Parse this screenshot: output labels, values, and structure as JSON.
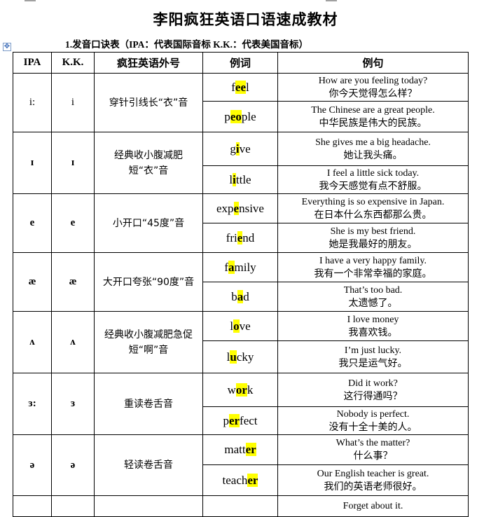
{
  "title": "李阳疯狂英语口语速成教材",
  "subtitle": "1.发音口诀表（IPA：代表国际音标 K.K.：代表美国音标）",
  "headers": [
    "IPA",
    "K.K.",
    "疯狂英语外号",
    "例词",
    "例句"
  ],
  "highlight_color": "#ffff00",
  "rows": [
    {
      "ipa": "i:",
      "kk": "i",
      "bold": false,
      "desc": "穿针引线长“衣”音",
      "h": [
        40,
        44
      ],
      "examples": [
        {
          "word": [
            "f",
            "ee",
            "l"
          ],
          "en": "How are you feeling today?",
          "zh": "你今天觉得怎么样？"
        },
        {
          "word": [
            "p",
            "eo",
            "ple"
          ],
          "en": "The Chinese are a great people.",
          "zh": "中华民族是伟大的民族。"
        }
      ]
    },
    {
      "ipa": "ɪ",
      "kk": "ɪ",
      "bold": true,
      "desc": "经典收小腹减肥短“衣”音",
      "h": [
        48,
        40
      ],
      "examples": [
        {
          "word": [
            "g",
            "i",
            "ve"
          ],
          "en": "She gives me a big headache.",
          "zh": "她让我头痛。"
        },
        {
          "word": [
            "l",
            "i",
            "ttle"
          ],
          "en": "I feel a little sick today.",
          "zh": "我今天感觉有点不舒服。"
        }
      ]
    },
    {
      "ipa": "e",
      "kk": "e",
      "bold": true,
      "desc": "小开口“45度”音",
      "h": [
        42,
        42
      ],
      "examples": [
        {
          "word": [
            "exp",
            "e",
            "nsive"
          ],
          "en": "Everything is so expensive in Japan.",
          "zh": "在日本什么东西都那么贵。"
        },
        {
          "word": [
            "fri",
            "e",
            "nd"
          ],
          "en": "She is my best friend.",
          "zh": "她是我最好的朋友。"
        }
      ]
    },
    {
      "ipa": "æ",
      "kk": "æ",
      "bold": true,
      "desc": "大开口夸张“90度”音",
      "h": [
        42,
        42
      ],
      "examples": [
        {
          "word": [
            "f",
            "a",
            "mily"
          ],
          "en": "I have a very happy family.",
          "zh": "我有一个非常幸福的家庭。"
        },
        {
          "word": [
            "b",
            "a",
            "d"
          ],
          "en": "That’s too bad.",
          "zh": "太遗憾了。"
        }
      ]
    },
    {
      "ipa": "ʌ",
      "kk": "ʌ",
      "bold": true,
      "desc": "经典收小腹减肥急促短“啊”音",
      "h": [
        42,
        46
      ],
      "examples": [
        {
          "word": [
            "l",
            "o",
            "ve"
          ],
          "en": "I love money",
          "zh": "我喜欢钱。"
        },
        {
          "word": [
            "l",
            "u",
            "cky"
          ],
          "en": "I’m just lucky.",
          "zh": "我只是运气好。"
        }
      ]
    },
    {
      "ipa": "ɜ:",
      "kk": "ɜ",
      "bold": true,
      "desc": "重读卷舌音",
      "h": [
        48,
        40
      ],
      "examples": [
        {
          "word": [
            "w",
            "or",
            "k"
          ],
          "en": "Did it work?",
          "zh": "这行得通吗？"
        },
        {
          "word": [
            "p",
            "er",
            "fect"
          ],
          "en": "Nobody is perfect.",
          "zh": "没有十全十美的人。"
        }
      ]
    },
    {
      "ipa": "ə",
      "kk": "ə",
      "bold": true,
      "desc": "轻读卷舌音",
      "h": [
        43,
        44
      ],
      "examples": [
        {
          "word": [
            "matt",
            "er",
            ""
          ],
          "en": "What’s the matter?",
          "zh": "什么事？"
        },
        {
          "word": [
            "teach",
            "er",
            ""
          ],
          "en": "Our English teacher is great.",
          "zh": "我们的英语老师很好。"
        }
      ]
    }
  ],
  "partial_row_text": "Forget about it."
}
